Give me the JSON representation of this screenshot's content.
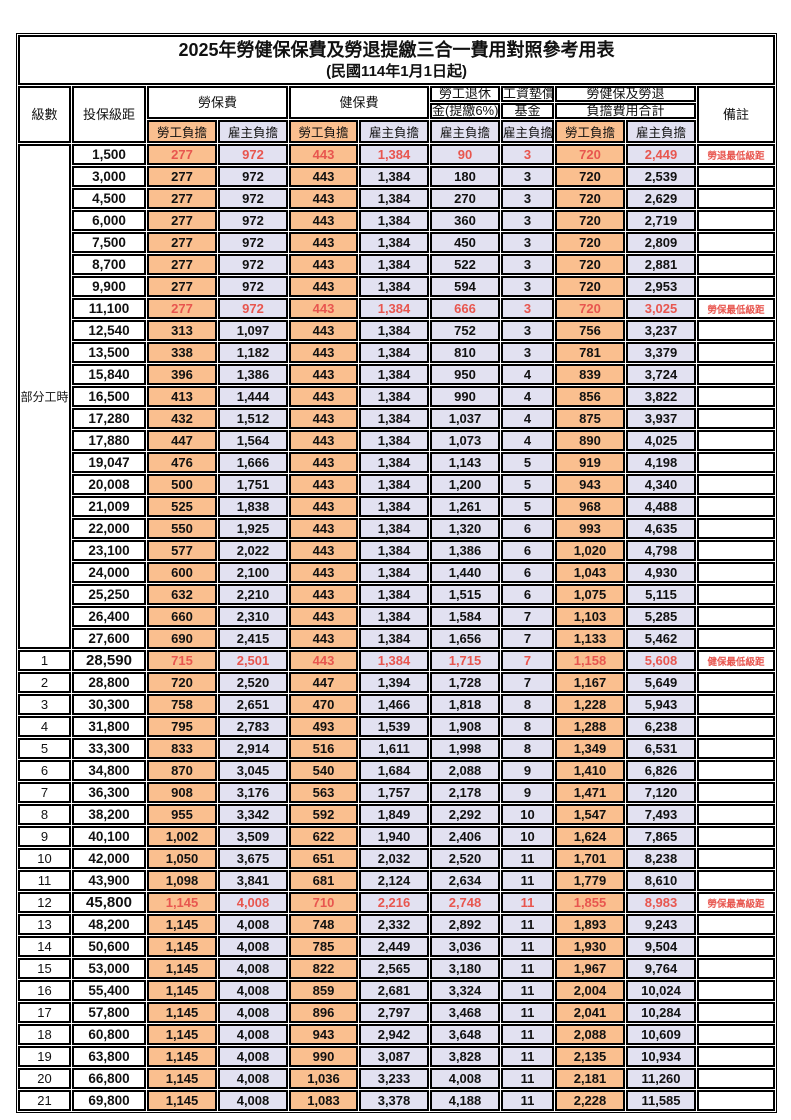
{
  "title": {
    "line1": "2025年勞健保保費及勞退提繳三合一費用對照參考用表",
    "line2": "(民國114年1月1日起)"
  },
  "header": {
    "level": "級數",
    "bracket": "投保級距",
    "labor": "勞保費",
    "health": "健保費",
    "pension_line1": "勞工退休",
    "pension_line2": "金(提繳6%)",
    "wage_line1": "工資墊償",
    "wage_line2": "基金",
    "total_line1": "勞健保及勞退",
    "total_line2": "負擔費用合計",
    "note": "備註",
    "employee": "勞工負擔",
    "employer": "雇主負擔"
  },
  "part_time_label": "部分工時",
  "part_time_rowspan": 23,
  "colors": {
    "employee_bg": "#FABF8F",
    "employer_bg": "#E2E1F1",
    "red_text": "#E8564F",
    "border": "#000000"
  },
  "table": {
    "type": "table",
    "columns": [
      "級數",
      "投保級距",
      "勞保費-勞工負擔",
      "勞保費-雇主負擔",
      "健保費-勞工負擔",
      "健保費-雇主負擔",
      "勞工退休金(提繳6%)-雇主負擔",
      "工資墊償基金-雇主負擔",
      "合計-勞工負擔",
      "合計-雇主負擔",
      "備註"
    ],
    "rows": [
      {
        "lv": "",
        "sal": "1,500",
        "le": "277",
        "lr": "972",
        "he": "443",
        "hr": "1,384",
        "pe": "90",
        "wf": "3",
        "te": "720",
        "ter": "2,449",
        "note": "勞退最低級距",
        "red": true,
        "em": false
      },
      {
        "lv": "",
        "sal": "3,000",
        "le": "277",
        "lr": "972",
        "he": "443",
        "hr": "1,384",
        "pe": "180",
        "wf": "3",
        "te": "720",
        "ter": "2,539",
        "note": "",
        "red": false,
        "em": false
      },
      {
        "lv": "",
        "sal": "4,500",
        "le": "277",
        "lr": "972",
        "he": "443",
        "hr": "1,384",
        "pe": "270",
        "wf": "3",
        "te": "720",
        "ter": "2,629",
        "note": "",
        "red": false,
        "em": false
      },
      {
        "lv": "",
        "sal": "6,000",
        "le": "277",
        "lr": "972",
        "he": "443",
        "hr": "1,384",
        "pe": "360",
        "wf": "3",
        "te": "720",
        "ter": "2,719",
        "note": "",
        "red": false,
        "em": false
      },
      {
        "lv": "",
        "sal": "7,500",
        "le": "277",
        "lr": "972",
        "he": "443",
        "hr": "1,384",
        "pe": "450",
        "wf": "3",
        "te": "720",
        "ter": "2,809",
        "note": "",
        "red": false,
        "em": false
      },
      {
        "lv": "",
        "sal": "8,700",
        "le": "277",
        "lr": "972",
        "he": "443",
        "hr": "1,384",
        "pe": "522",
        "wf": "3",
        "te": "720",
        "ter": "2,881",
        "note": "",
        "red": false,
        "em": false
      },
      {
        "lv": "",
        "sal": "9,900",
        "le": "277",
        "lr": "972",
        "he": "443",
        "hr": "1,384",
        "pe": "594",
        "wf": "3",
        "te": "720",
        "ter": "2,953",
        "note": "",
        "red": false,
        "em": false
      },
      {
        "lv": "",
        "sal": "11,100",
        "le": "277",
        "lr": "972",
        "he": "443",
        "hr": "1,384",
        "pe": "666",
        "wf": "3",
        "te": "720",
        "ter": "3,025",
        "note": "勞保最低級距",
        "red": true,
        "em": false
      },
      {
        "lv": "",
        "sal": "12,540",
        "le": "313",
        "lr": "1,097",
        "he": "443",
        "hr": "1,384",
        "pe": "752",
        "wf": "3",
        "te": "756",
        "ter": "3,237",
        "note": "",
        "red": false,
        "em": false
      },
      {
        "lv": "",
        "sal": "13,500",
        "le": "338",
        "lr": "1,182",
        "he": "443",
        "hr": "1,384",
        "pe": "810",
        "wf": "3",
        "te": "781",
        "ter": "3,379",
        "note": "",
        "red": false,
        "em": false
      },
      {
        "lv": "",
        "sal": "15,840",
        "le": "396",
        "lr": "1,386",
        "he": "443",
        "hr": "1,384",
        "pe": "950",
        "wf": "4",
        "te": "839",
        "ter": "3,724",
        "note": "",
        "red": false,
        "em": false
      },
      {
        "lv": "",
        "sal": "16,500",
        "le": "413",
        "lr": "1,444",
        "he": "443",
        "hr": "1,384",
        "pe": "990",
        "wf": "4",
        "te": "856",
        "ter": "3,822",
        "note": "",
        "red": false,
        "em": false
      },
      {
        "lv": "",
        "sal": "17,280",
        "le": "432",
        "lr": "1,512",
        "he": "443",
        "hr": "1,384",
        "pe": "1,037",
        "wf": "4",
        "te": "875",
        "ter": "3,937",
        "note": "",
        "red": false,
        "em": false
      },
      {
        "lv": "",
        "sal": "17,880",
        "le": "447",
        "lr": "1,564",
        "he": "443",
        "hr": "1,384",
        "pe": "1,073",
        "wf": "4",
        "te": "890",
        "ter": "4,025",
        "note": "",
        "red": false,
        "em": false
      },
      {
        "lv": "",
        "sal": "19,047",
        "le": "476",
        "lr": "1,666",
        "he": "443",
        "hr": "1,384",
        "pe": "1,143",
        "wf": "5",
        "te": "919",
        "ter": "4,198",
        "note": "",
        "red": false,
        "em": false
      },
      {
        "lv": "",
        "sal": "20,008",
        "le": "500",
        "lr": "1,751",
        "he": "443",
        "hr": "1,384",
        "pe": "1,200",
        "wf": "5",
        "te": "943",
        "ter": "4,340",
        "note": "",
        "red": false,
        "em": false
      },
      {
        "lv": "",
        "sal": "21,009",
        "le": "525",
        "lr": "1,838",
        "he": "443",
        "hr": "1,384",
        "pe": "1,261",
        "wf": "5",
        "te": "968",
        "ter": "4,488",
        "note": "",
        "red": false,
        "em": false
      },
      {
        "lv": "",
        "sal": "22,000",
        "le": "550",
        "lr": "1,925",
        "he": "443",
        "hr": "1,384",
        "pe": "1,320",
        "wf": "6",
        "te": "993",
        "ter": "4,635",
        "note": "",
        "red": false,
        "em": false
      },
      {
        "lv": "",
        "sal": "23,100",
        "le": "577",
        "lr": "2,022",
        "he": "443",
        "hr": "1,384",
        "pe": "1,386",
        "wf": "6",
        "te": "1,020",
        "ter": "4,798",
        "note": "",
        "red": false,
        "em": false
      },
      {
        "lv": "",
        "sal": "24,000",
        "le": "600",
        "lr": "2,100",
        "he": "443",
        "hr": "1,384",
        "pe": "1,440",
        "wf": "6",
        "te": "1,043",
        "ter": "4,930",
        "note": "",
        "red": false,
        "em": false
      },
      {
        "lv": "",
        "sal": "25,250",
        "le": "632",
        "lr": "2,210",
        "he": "443",
        "hr": "1,384",
        "pe": "1,515",
        "wf": "6",
        "te": "1,075",
        "ter": "5,115",
        "note": "",
        "red": false,
        "em": false
      },
      {
        "lv": "",
        "sal": "26,400",
        "le": "660",
        "lr": "2,310",
        "he": "443",
        "hr": "1,384",
        "pe": "1,584",
        "wf": "7",
        "te": "1,103",
        "ter": "5,285",
        "note": "",
        "red": false,
        "em": false
      },
      {
        "lv": "",
        "sal": "27,600",
        "le": "690",
        "lr": "2,415",
        "he": "443",
        "hr": "1,384",
        "pe": "1,656",
        "wf": "7",
        "te": "1,133",
        "ter": "5,462",
        "note": "",
        "red": false,
        "em": false
      },
      {
        "lv": "1",
        "sal": "28,590",
        "le": "715",
        "lr": "2,501",
        "he": "443",
        "hr": "1,384",
        "pe": "1,715",
        "wf": "7",
        "te": "1,158",
        "ter": "5,608",
        "note": "健保最低級距",
        "red": true,
        "em": true
      },
      {
        "lv": "2",
        "sal": "28,800",
        "le": "720",
        "lr": "2,520",
        "he": "447",
        "hr": "1,394",
        "pe": "1,728",
        "wf": "7",
        "te": "1,167",
        "ter": "5,649",
        "note": "",
        "red": false,
        "em": false
      },
      {
        "lv": "3",
        "sal": "30,300",
        "le": "758",
        "lr": "2,651",
        "he": "470",
        "hr": "1,466",
        "pe": "1,818",
        "wf": "8",
        "te": "1,228",
        "ter": "5,943",
        "note": "",
        "red": false,
        "em": false
      },
      {
        "lv": "4",
        "sal": "31,800",
        "le": "795",
        "lr": "2,783",
        "he": "493",
        "hr": "1,539",
        "pe": "1,908",
        "wf": "8",
        "te": "1,288",
        "ter": "6,238",
        "note": "",
        "red": false,
        "em": false
      },
      {
        "lv": "5",
        "sal": "33,300",
        "le": "833",
        "lr": "2,914",
        "he": "516",
        "hr": "1,611",
        "pe": "1,998",
        "wf": "8",
        "te": "1,349",
        "ter": "6,531",
        "note": "",
        "red": false,
        "em": false
      },
      {
        "lv": "6",
        "sal": "34,800",
        "le": "870",
        "lr": "3,045",
        "he": "540",
        "hr": "1,684",
        "pe": "2,088",
        "wf": "9",
        "te": "1,410",
        "ter": "6,826",
        "note": "",
        "red": false,
        "em": false
      },
      {
        "lv": "7",
        "sal": "36,300",
        "le": "908",
        "lr": "3,176",
        "he": "563",
        "hr": "1,757",
        "pe": "2,178",
        "wf": "9",
        "te": "1,471",
        "ter": "7,120",
        "note": "",
        "red": false,
        "em": false
      },
      {
        "lv": "8",
        "sal": "38,200",
        "le": "955",
        "lr": "3,342",
        "he": "592",
        "hr": "1,849",
        "pe": "2,292",
        "wf": "10",
        "te": "1,547",
        "ter": "7,493",
        "note": "",
        "red": false,
        "em": false
      },
      {
        "lv": "9",
        "sal": "40,100",
        "le": "1,002",
        "lr": "3,509",
        "he": "622",
        "hr": "1,940",
        "pe": "2,406",
        "wf": "10",
        "te": "1,624",
        "ter": "7,865",
        "note": "",
        "red": false,
        "em": false
      },
      {
        "lv": "10",
        "sal": "42,000",
        "le": "1,050",
        "lr": "3,675",
        "he": "651",
        "hr": "2,032",
        "pe": "2,520",
        "wf": "11",
        "te": "1,701",
        "ter": "8,238",
        "note": "",
        "red": false,
        "em": false
      },
      {
        "lv": "11",
        "sal": "43,900",
        "le": "1,098",
        "lr": "3,841",
        "he": "681",
        "hr": "2,124",
        "pe": "2,634",
        "wf": "11",
        "te": "1,779",
        "ter": "8,610",
        "note": "",
        "red": false,
        "em": false
      },
      {
        "lv": "12",
        "sal": "45,800",
        "le": "1,145",
        "lr": "4,008",
        "he": "710",
        "hr": "2,216",
        "pe": "2,748",
        "wf": "11",
        "te": "1,855",
        "ter": "8,983",
        "note": "勞保最高級距",
        "red": true,
        "em": true
      },
      {
        "lv": "13",
        "sal": "48,200",
        "le": "1,145",
        "lr": "4,008",
        "he": "748",
        "hr": "2,332",
        "pe": "2,892",
        "wf": "11",
        "te": "1,893",
        "ter": "9,243",
        "note": "",
        "red": false,
        "em": false
      },
      {
        "lv": "14",
        "sal": "50,600",
        "le": "1,145",
        "lr": "4,008",
        "he": "785",
        "hr": "2,449",
        "pe": "3,036",
        "wf": "11",
        "te": "1,930",
        "ter": "9,504",
        "note": "",
        "red": false,
        "em": false
      },
      {
        "lv": "15",
        "sal": "53,000",
        "le": "1,145",
        "lr": "4,008",
        "he": "822",
        "hr": "2,565",
        "pe": "3,180",
        "wf": "11",
        "te": "1,967",
        "ter": "9,764",
        "note": "",
        "red": false,
        "em": false
      },
      {
        "lv": "16",
        "sal": "55,400",
        "le": "1,145",
        "lr": "4,008",
        "he": "859",
        "hr": "2,681",
        "pe": "3,324",
        "wf": "11",
        "te": "2,004",
        "ter": "10,024",
        "note": "",
        "red": false,
        "em": false
      },
      {
        "lv": "17",
        "sal": "57,800",
        "le": "1,145",
        "lr": "4,008",
        "he": "896",
        "hr": "2,797",
        "pe": "3,468",
        "wf": "11",
        "te": "2,041",
        "ter": "10,284",
        "note": "",
        "red": false,
        "em": false
      },
      {
        "lv": "18",
        "sal": "60,800",
        "le": "1,145",
        "lr": "4,008",
        "he": "943",
        "hr": "2,942",
        "pe": "3,648",
        "wf": "11",
        "te": "2,088",
        "ter": "10,609",
        "note": "",
        "red": false,
        "em": false
      },
      {
        "lv": "19",
        "sal": "63,800",
        "le": "1,145",
        "lr": "4,008",
        "he": "990",
        "hr": "3,087",
        "pe": "3,828",
        "wf": "11",
        "te": "2,135",
        "ter": "10,934",
        "note": "",
        "red": false,
        "em": false
      },
      {
        "lv": "20",
        "sal": "66,800",
        "le": "1,145",
        "lr": "4,008",
        "he": "1,036",
        "hr": "3,233",
        "pe": "4,008",
        "wf": "11",
        "te": "2,181",
        "ter": "11,260",
        "note": "",
        "red": false,
        "em": false
      },
      {
        "lv": "21",
        "sal": "69,800",
        "le": "1,145",
        "lr": "4,008",
        "he": "1,083",
        "hr": "3,378",
        "pe": "4,188",
        "wf": "11",
        "te": "2,228",
        "ter": "11,585",
        "note": "",
        "red": false,
        "em": false
      }
    ]
  }
}
